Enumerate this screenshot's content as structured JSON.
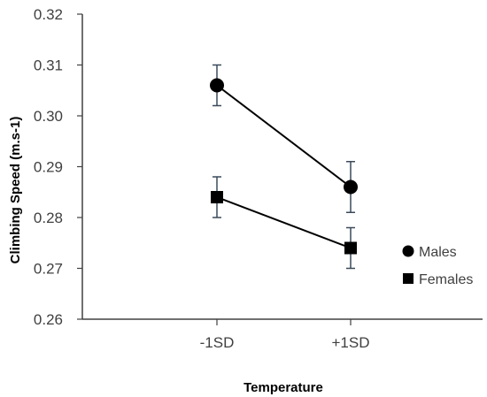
{
  "chart_data": {
    "type": "line",
    "xlabel": "Temperature",
    "ylabel": "Climbing Speed (m.s-1)",
    "categories": [
      "-1SD",
      "+1SD"
    ],
    "ylim": [
      0.26,
      0.32
    ],
    "yticks": [
      "0.26",
      "0.27",
      "0.28",
      "0.29",
      "0.30",
      "0.31",
      "0.32"
    ],
    "grid": false,
    "legend_position": "right",
    "series": [
      {
        "name": "Males",
        "marker": "circle",
        "values": [
          0.306,
          0.286
        ],
        "error": [
          0.004,
          0.005
        ]
      },
      {
        "name": "Females",
        "marker": "square",
        "values": [
          0.284,
          0.274
        ],
        "error": [
          0.004,
          0.004
        ]
      }
    ],
    "colors": {
      "series": "#000000",
      "error_bar": "#3a4a5a",
      "axis": "#404040"
    }
  }
}
